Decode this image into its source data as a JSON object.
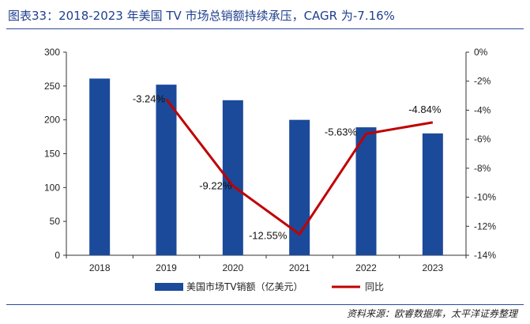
{
  "title": "图表33：2018-2023 年美国 TV 市场总销额持续承压，CAGR 为-7.16%",
  "source": "资料来源：欧睿数据库，太平洋证券整理",
  "colors": {
    "bar": "#1b4a9a",
    "line": "#c00000",
    "text": "#222222",
    "title": "#1f3f8f"
  },
  "chart_data": {
    "type": "bar",
    "categories": [
      "2018",
      "2019",
      "2020",
      "2021",
      "2022",
      "2023"
    ],
    "series": [
      {
        "name": "美国市场TV销额（亿美元）",
        "type": "bar",
        "axis": "left",
        "values": [
          261,
          252,
          229,
          200,
          189,
          180
        ]
      },
      {
        "name": "同比",
        "type": "line",
        "axis": "right",
        "values": [
          null,
          -3.24,
          -9.22,
          -12.55,
          -5.63,
          -4.84
        ],
        "labels": [
          "",
          "-3.24%",
          "-9.22%",
          "-12.55%",
          "-5.63%",
          "-4.84%"
        ]
      }
    ],
    "y_left": {
      "min": 0,
      "max": 300,
      "ticks": [
        "0",
        "50",
        "100",
        "150",
        "200",
        "250",
        "300"
      ]
    },
    "y_right": {
      "min": -14,
      "max": 0,
      "ticks": [
        "-14%",
        "-12%",
        "-10%",
        "-8%",
        "-6%",
        "-4%",
        "-2%",
        "0%"
      ]
    },
    "legend_position": "bottom",
    "grid": false
  }
}
